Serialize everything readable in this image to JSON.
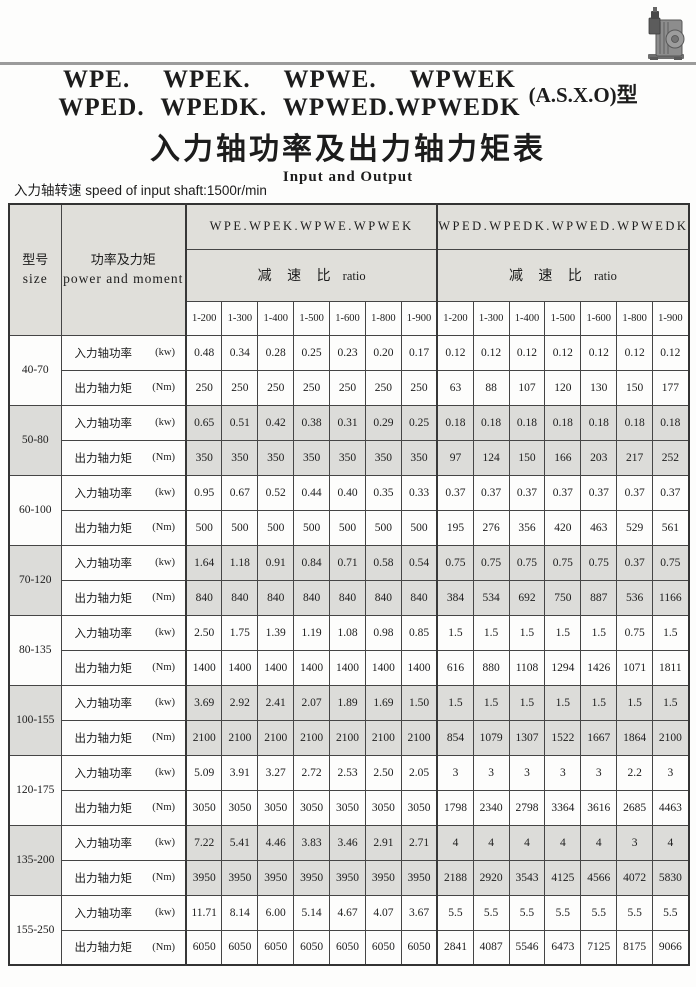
{
  "page": {
    "title_line1": "WPE. WPEK. WPWE. WPWEK",
    "title_line2": "WPED. WPEDK. WPWED.WPWEDK",
    "title_suffix": "(A.S.X.O)型",
    "title_cn": "入力轴功率及出力轴力矩表",
    "title_en": "Input and Output",
    "speed_note_cn": "入力轴转速",
    "speed_note_en": "speed of input shaft:1500r/min",
    "gearbox_photo": "worm-gear-reducer-photo"
  },
  "table": {
    "size_header_cn": "型号",
    "size_header_en": "size",
    "moment_header_cn": "功率及力矩",
    "moment_header_en": "power and moment",
    "group1_label": "WPE.WPEK.WPWE.WPWEK",
    "group2_label": "WPED.WPEDK.WPWED.WPWEDK",
    "ratio_label_cn": "减 速 比",
    "ratio_label_en": "ratio",
    "ratios": [
      "1-200",
      "1-300",
      "1-400",
      "1-500",
      "1-600",
      "1-800",
      "1-900"
    ],
    "power_label": "入力轴功率",
    "power_unit": "(kw)",
    "torque_label": "出力轴力矩",
    "torque_unit": "(Nm)",
    "rows": [
      {
        "size": "40-70",
        "shaded": false,
        "power": [
          "0.48",
          "0.34",
          "0.28",
          "0.25",
          "0.23",
          "0.20",
          "0.17",
          "0.12",
          "0.12",
          "0.12",
          "0.12",
          "0.12",
          "0.12",
          "0.12"
        ],
        "torque": [
          "250",
          "250",
          "250",
          "250",
          "250",
          "250",
          "250",
          "63",
          "88",
          "107",
          "120",
          "130",
          "150",
          "177"
        ]
      },
      {
        "size": "50-80",
        "shaded": true,
        "power": [
          "0.65",
          "0.51",
          "0.42",
          "0.38",
          "0.31",
          "0.29",
          "0.25",
          "0.18",
          "0.18",
          "0.18",
          "0.18",
          "0.18",
          "0.18",
          "0.18"
        ],
        "torque": [
          "350",
          "350",
          "350",
          "350",
          "350",
          "350",
          "350",
          "97",
          "124",
          "150",
          "166",
          "203",
          "217",
          "252"
        ]
      },
      {
        "size": "60-100",
        "shaded": false,
        "power": [
          "0.95",
          "0.67",
          "0.52",
          "0.44",
          "0.40",
          "0.35",
          "0.33",
          "0.37",
          "0.37",
          "0.37",
          "0.37",
          "0.37",
          "0.37",
          "0.37"
        ],
        "torque": [
          "500",
          "500",
          "500",
          "500",
          "500",
          "500",
          "500",
          "195",
          "276",
          "356",
          "420",
          "463",
          "529",
          "561"
        ]
      },
      {
        "size": "70-120",
        "shaded": true,
        "power": [
          "1.64",
          "1.18",
          "0.91",
          "0.84",
          "0.71",
          "0.58",
          "0.54",
          "0.75",
          "0.75",
          "0.75",
          "0.75",
          "0.75",
          "0.37",
          "0.75"
        ],
        "torque": [
          "840",
          "840",
          "840",
          "840",
          "840",
          "840",
          "840",
          "384",
          "534",
          "692",
          "750",
          "887",
          "536",
          "1166"
        ]
      },
      {
        "size": "80-135",
        "shaded": false,
        "power": [
          "2.50",
          "1.75",
          "1.39",
          "1.19",
          "1.08",
          "0.98",
          "0.85",
          "1.5",
          "1.5",
          "1.5",
          "1.5",
          "1.5",
          "0.75",
          "1.5"
        ],
        "torque": [
          "1400",
          "1400",
          "1400",
          "1400",
          "1400",
          "1400",
          "1400",
          "616",
          "880",
          "1108",
          "1294",
          "1426",
          "1071",
          "1811"
        ]
      },
      {
        "size": "100-155",
        "shaded": true,
        "power": [
          "3.69",
          "2.92",
          "2.41",
          "2.07",
          "1.89",
          "1.69",
          "1.50",
          "1.5",
          "1.5",
          "1.5",
          "1.5",
          "1.5",
          "1.5",
          "1.5"
        ],
        "torque": [
          "2100",
          "2100",
          "2100",
          "2100",
          "2100",
          "2100",
          "2100",
          "854",
          "1079",
          "1307",
          "1522",
          "1667",
          "1864",
          "2100"
        ]
      },
      {
        "size": "120-175",
        "shaded": false,
        "power": [
          "5.09",
          "3.91",
          "3.27",
          "2.72",
          "2.53",
          "2.50",
          "2.05",
          "3",
          "3",
          "3",
          "3",
          "3",
          "2.2",
          "3"
        ],
        "torque": [
          "3050",
          "3050",
          "3050",
          "3050",
          "3050",
          "3050",
          "3050",
          "1798",
          "2340",
          "2798",
          "3364",
          "3616",
          "2685",
          "4463"
        ]
      },
      {
        "size": "135-200",
        "shaded": true,
        "power": [
          "7.22",
          "5.41",
          "4.46",
          "3.83",
          "3.46",
          "2.91",
          "2.71",
          "4",
          "4",
          "4",
          "4",
          "4",
          "3",
          "4"
        ],
        "torque": [
          "3950",
          "3950",
          "3950",
          "3950",
          "3950",
          "3950",
          "3950",
          "2188",
          "2920",
          "3543",
          "4125",
          "4566",
          "4072",
          "5830"
        ]
      },
      {
        "size": "155-250",
        "shaded": false,
        "power": [
          "11.71",
          "8.14",
          "6.00",
          "5.14",
          "4.67",
          "4.07",
          "3.67",
          "5.5",
          "5.5",
          "5.5",
          "5.5",
          "5.5",
          "5.5",
          "5.5"
        ],
        "torque": [
          "6050",
          "6050",
          "6050",
          "6050",
          "6050",
          "6050",
          "6050",
          "2841",
          "4087",
          "5546",
          "6473",
          "7125",
          "8175",
          "9066"
        ]
      }
    ]
  }
}
